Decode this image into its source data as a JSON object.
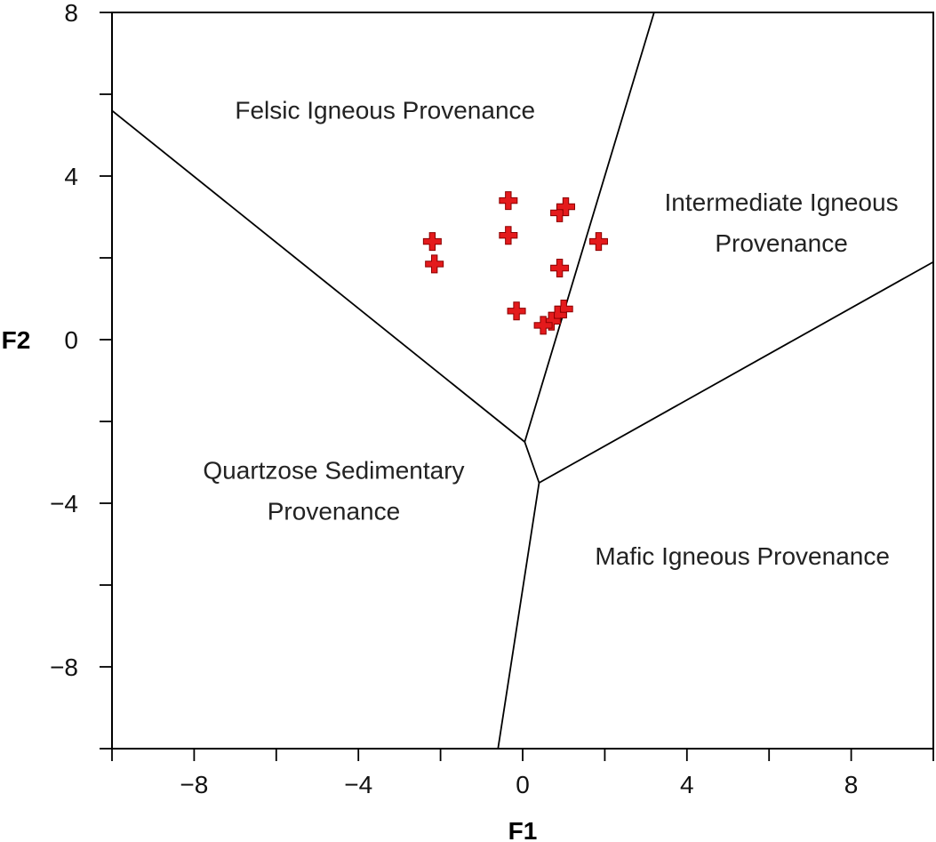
{
  "chart_data": {
    "type": "scatter",
    "xlabel": "F1",
    "ylabel": "F2",
    "xlim": [
      -10,
      10
    ],
    "ylim": [
      -10,
      8
    ],
    "x_ticks": [
      -8,
      -4,
      0,
      4,
      8
    ],
    "y_ticks": [
      -8,
      -4,
      0,
      4,
      8
    ],
    "x_tick_labels": [
      "−8",
      "−4",
      "0",
      "4",
      "8"
    ],
    "y_tick_labels": [
      "−8",
      "−4",
      "0",
      "4",
      "8"
    ],
    "minor_tick_step": 2,
    "grid": false,
    "marker": {
      "shape": "plus",
      "color": "#e41a1c",
      "outline": "#8b0000"
    },
    "series": [
      {
        "points": [
          {
            "x": -2.2,
            "y": 2.4
          },
          {
            "x": -2.15,
            "y": 1.85
          },
          {
            "x": -0.35,
            "y": 3.4
          },
          {
            "x": -0.35,
            "y": 2.55
          },
          {
            "x": 0.9,
            "y": 3.1
          },
          {
            "x": 1.05,
            "y": 3.25
          },
          {
            "x": 1.85,
            "y": 2.4
          },
          {
            "x": 0.9,
            "y": 1.75
          },
          {
            "x": -0.15,
            "y": 0.7
          },
          {
            "x": 1.0,
            "y": 0.75
          },
          {
            "x": 0.85,
            "y": 0.6
          },
          {
            "x": 0.7,
            "y": 0.45
          },
          {
            "x": 0.5,
            "y": 0.35
          }
        ]
      }
    ],
    "boundaries": [
      {
        "from": [
          -10,
          5.6
        ],
        "to": [
          0.05,
          -2.5
        ]
      },
      {
        "from": [
          0.05,
          -2.5
        ],
        "to": [
          3.2,
          8.0
        ]
      },
      {
        "from": [
          0.05,
          -2.5
        ],
        "to": [
          0.4,
          -3.5
        ]
      },
      {
        "from": [
          0.4,
          -3.5
        ],
        "to": [
          10,
          1.9
        ]
      },
      {
        "from": [
          0.4,
          -3.5
        ],
        "to": [
          -0.6,
          -10
        ]
      }
    ],
    "regions": [
      {
        "lines": [
          "Felsic Igneous Provenance"
        ],
        "x": -3.35,
        "y": 5.4
      },
      {
        "lines": [
          "Intermediate Igneous",
          "Provenance"
        ],
        "x": 6.3,
        "y": 3.15
      },
      {
        "lines": [
          "Quartzose Sedimentary",
          "Provenance"
        ],
        "x": -4.6,
        "y": -3.4
      },
      {
        "lines": [
          "Mafic Igneous Provenance"
        ],
        "x": 5.35,
        "y": -5.5
      }
    ]
  }
}
